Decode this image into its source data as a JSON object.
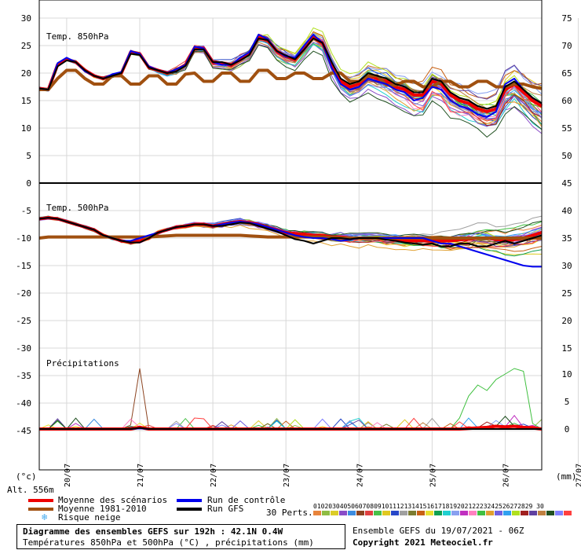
{
  "panels": {
    "t850_label": "Temp. 850hPa",
    "t500_label": "Temp. 500hPa",
    "precip_label": "Précipitations"
  },
  "axes": {
    "left_unit": "(°c)",
    "right_unit": "(mm)",
    "altitude": "Alt. 556m",
    "left_ticks": [
      "30",
      "25",
      "20",
      "15",
      "10",
      "5",
      "0",
      "-5",
      "-10",
      "-15",
      "-20",
      "-25",
      "-30",
      "-35",
      "-40",
      "-45"
    ],
    "right_ticks_top": [
      "75",
      "70",
      "65",
      "60",
      "55",
      "50",
      "45"
    ],
    "right_ticks_mid": [
      "40",
      "35",
      "30",
      "25",
      "20",
      "15"
    ],
    "right_ticks_precip": [
      "10",
      "5",
      "0"
    ],
    "dates": [
      "20/07",
      "21/07",
      "22/07",
      "23/07",
      "24/07",
      "25/07",
      "26/07",
      "27/07"
    ]
  },
  "legend": {
    "mean_scenarios": "Moyenne des scénarios",
    "mean_climato": "Moyenne 1981-2010",
    "snow_risk": "Risque neige",
    "control_run": "Run de contrôle",
    "gfs_run": "Run GFS",
    "perts_label": "30 Perts.",
    "perts_numbers": "01020304050607080910111213141516171819202122232425262728293​0",
    "colors": {
      "mean": "#ee0000",
      "climato": "#a05010",
      "control": "#0000ee",
      "gfs": "#000000",
      "snow": "#44aaee"
    }
  },
  "footer": {
    "title": "Diagramme des ensembles GEFS sur 192h : 42.1N 0.4W",
    "subtitle": "Températures 850hPa et 500hPa (°C) , précipitations (mm)",
    "run": "Ensemble GEFS du 19/07/2021 - 06Z",
    "copyright": "Copyright 2021 Meteociel.fr"
  },
  "pert_colors": [
    "#e8843c",
    "#8fbc44",
    "#dccc28",
    "#8a4cc8",
    "#3c8ce0",
    "#8c4420",
    "#e04040",
    "#48c048",
    "#e0c820",
    "#2848c8",
    "#a0a0a0",
    "#7c7c30",
    "#c86014",
    "#e8e030",
    "#10a050",
    "#20d0d0",
    "#88a0f0",
    "#c030c0",
    "#ff80c0",
    "#40c040",
    "#e0a030",
    "#7060e0",
    "#30a0f0",
    "#b0e020",
    "#a02020",
    "#6040a0",
    "#c08040",
    "#205020",
    "#8080ff",
    "#ff4040"
  ],
  "chart_data": {
    "type": "line",
    "x_start": "19/07 06Z",
    "x_step_hours": 6,
    "x_labels": [
      "20/07",
      "21/07",
      "22/07",
      "23/07",
      "24/07",
      "25/07",
      "26/07",
      "27/07"
    ],
    "panels": [
      {
        "name": "Temp. 850hPa",
        "unit": "°C",
        "ylim": [
          0,
          30
        ],
        "series": [
          {
            "name": "Moyenne des scénarios",
            "values": [
              17.2,
              17.0,
              21.5,
              22.5,
              22.0,
              20.5,
              19.5,
              19.0,
              19.5,
              20.0,
              23.8,
              23.5,
              21.0,
              20.5,
              20.0,
              20.5,
              21.5,
              24.5,
              24.5,
              22.0,
              21.8,
              21.5,
              22.5,
              23.5,
              26.5,
              26.0,
              24.0,
              23.0,
              22.5,
              24.5,
              26.5,
              25.5,
              21.5,
              18.5,
              17.5,
              18.0,
              19.5,
              19.0,
              18.5,
              17.5,
              17.0,
              16.0,
              16.0,
              18.5,
              18.0,
              16.0,
              15.0,
              14.5,
              13.5,
              13.0,
              13.5,
              17.0,
              18.0,
              16.5,
              15.0,
              14.0
            ]
          },
          {
            "name": "Moyenne 1981-2010",
            "values": [
              17.0,
              17.0,
              19.0,
              20.5,
              20.5,
              19.0,
              18.0,
              18.0,
              19.5,
              19.5,
              18.0,
              18.0,
              19.5,
              19.5,
              18.0,
              18.0,
              19.8,
              20.0,
              18.5,
              18.5,
              20.0,
              20.0,
              18.5,
              18.5,
              20.5,
              20.5,
              19.0,
              19.0,
              20.0,
              20.0,
              19.0,
              19.0,
              20.0,
              20.0,
              18.5,
              18.5,
              19.5,
              19.5,
              17.8,
              17.8,
              18.5,
              18.5,
              17.5,
              17.5,
              18.5,
              18.5,
              17.5,
              17.5,
              18.5,
              18.5,
              17.5,
              17.5,
              18.0,
              18.0,
              17.5,
              17.2
            ]
          },
          {
            "name": "Run de contrôle",
            "values": [
              17.2,
              17.0,
              21.8,
              22.8,
              22.0,
              20.3,
              19.5,
              19.0,
              19.8,
              20.2,
              24.0,
              23.5,
              21.2,
              20.5,
              20.0,
              20.7,
              21.5,
              24.8,
              24.5,
              22.0,
              21.5,
              21.5,
              22.8,
              23.8,
              27.0,
              26.2,
              24.0,
              23.0,
              22.8,
              25.0,
              27.0,
              25.5,
              21.0,
              18.0,
              17.0,
              17.5,
              19.0,
              18.5,
              18.0,
              17.0,
              16.5,
              15.0,
              15.5,
              17.5,
              17.0,
              15.0,
              14.0,
              13.5,
              12.5,
              12.0,
              13.0,
              18.0,
              19.0,
              17.0,
              15.5,
              14.5
            ]
          },
          {
            "name": "Run GFS",
            "values": [
              17.2,
              17.0,
              21.2,
              22.3,
              22.0,
              20.5,
              19.5,
              19.0,
              19.5,
              20.0,
              23.5,
              23.3,
              21.0,
              20.5,
              20.0,
              20.3,
              21.3,
              24.3,
              24.3,
              22.0,
              22.0,
              21.5,
              22.3,
              23.3,
              26.3,
              26.0,
              24.0,
              23.2,
              22.5,
              24.3,
              26.3,
              25.5,
              22.0,
              19.0,
              18.0,
              18.5,
              20.0,
              19.5,
              19.0,
              18.0,
              17.5,
              16.5,
              16.5,
              19.0,
              18.5,
              16.5,
              15.5,
              15.0,
              14.0,
              13.5,
              14.0,
              17.5,
              18.5,
              17.0,
              15.5,
              14.5
            ]
          }
        ]
      },
      {
        "name": "Temp. 500hPa",
        "unit": "°C",
        "ylim": [
          -20,
          0
        ],
        "series": [
          {
            "name": "Moyenne des scénarios",
            "values": [
              -6.5,
              -6.3,
              -6.5,
              -7.0,
              -7.5,
              -8.0,
              -8.5,
              -9.5,
              -10.0,
              -10.5,
              -10.8,
              -10.5,
              -10.0,
              -9.0,
              -8.5,
              -8.0,
              -7.8,
              -7.5,
              -7.5,
              -7.8,
              -7.5,
              -7.2,
              -7.0,
              -7.2,
              -7.5,
              -8.0,
              -8.5,
              -9.0,
              -9.2,
              -9.3,
              -9.5,
              -9.5,
              -9.8,
              -9.8,
              -10.0,
              -10.0,
              -10.0,
              -10.0,
              -10.2,
              -10.3,
              -10.5,
              -10.5,
              -10.5,
              -10.5,
              -10.5,
              -10.5,
              -10.3,
              -10.2,
              -10.0,
              -10.0,
              -10.2,
              -10.5,
              -10.2,
              -10.0,
              -9.5,
              -9.0
            ]
          },
          {
            "name": "Moyenne 1981-2010",
            "values": [
              -10.0,
              -9.8,
              -9.8,
              -9.8,
              -9.8,
              -9.8,
              -9.8,
              -9.8,
              -9.8,
              -9.8,
              -9.8,
              -9.8,
              -9.8,
              -9.7,
              -9.6,
              -9.5,
              -9.5,
              -9.5,
              -9.5,
              -9.5,
              -9.5,
              -9.5,
              -9.5,
              -9.6,
              -9.7,
              -9.8,
              -9.8,
              -9.8,
              -9.8,
              -9.8,
              -9.8,
              -9.8,
              -9.9,
              -10.0,
              -10.0,
              -10.0,
              -10.0,
              -10.0,
              -10.0,
              -10.0,
              -10.0,
              -10.0,
              -10.0,
              -10.0,
              -10.0,
              -10.0,
              -10.0,
              -10.0,
              -10.0,
              -10.0,
              -10.0,
              -10.0,
              -10.0,
              -10.0,
              -10.0,
              -10.0
            ]
          },
          {
            "name": "Run de contrôle",
            "values": [
              -6.5,
              -6.3,
              -6.5,
              -7.0,
              -7.5,
              -8.0,
              -8.5,
              -9.5,
              -10.0,
              -10.5,
              -10.5,
              -10.0,
              -9.5,
              -9.0,
              -8.5,
              -8.0,
              -7.8,
              -7.5,
              -7.5,
              -7.8,
              -7.5,
              -7.2,
              -7.0,
              -7.2,
              -7.5,
              -8.0,
              -8.5,
              -9.0,
              -9.5,
              -9.8,
              -10.0,
              -10.0,
              -10.2,
              -10.5,
              -10.3,
              -10.0,
              -10.0,
              -10.0,
              -10.0,
              -10.0,
              -10.0,
              -10.0,
              -10.0,
              -10.5,
              -11.0,
              -11.0,
              -11.5,
              -12.0,
              -12.5,
              -13.0,
              -13.5,
              -14.0,
              -14.5,
              -15.0,
              -15.2,
              -15.2
            ]
          },
          {
            "name": "Run GFS",
            "values": [
              -6.5,
              -6.3,
              -6.5,
              -7.0,
              -7.5,
              -8.0,
              -8.5,
              -9.5,
              -10.0,
              -10.5,
              -10.8,
              -10.8,
              -10.0,
              -9.0,
              -8.5,
              -8.0,
              -7.8,
              -7.5,
              -7.5,
              -7.8,
              -7.8,
              -7.5,
              -7.2,
              -7.3,
              -7.8,
              -8.3,
              -8.8,
              -9.5,
              -10.2,
              -10.5,
              -11.0,
              -10.5,
              -10.0,
              -10.0,
              -10.2,
              -10.0,
              -10.0,
              -10.0,
              -10.3,
              -10.5,
              -10.8,
              -11.0,
              -11.2,
              -11.0,
              -11.5,
              -11.5,
              -11.0,
              -11.0,
              -11.5,
              -11.5,
              -11.0,
              -10.5,
              -11.0,
              -10.5,
              -10.0,
              -9.5
            ]
          }
        ]
      },
      {
        "name": "Précipitations",
        "unit": "mm",
        "ylim": [
          0,
          10
        ],
        "series": [
          {
            "name": "Moyenne des scénarios",
            "values": [
              0,
              0,
              0,
              0,
              0,
              0,
              0,
              0,
              0,
              0,
              0,
              0.3,
              0,
              0,
              0,
              0,
              0,
              0,
              0,
              0,
              0,
              0,
              0,
              0,
              0,
              0,
              0,
              0,
              0,
              0,
              0,
              0,
              0,
              0,
              0,
              0,
              0,
              0,
              0,
              0,
              0,
              0,
              0,
              0,
              0,
              0,
              0,
              0.1,
              0.2,
              0.3,
              0.5,
              0.4,
              0.5,
              0.3,
              0.2,
              0
            ]
          },
          {
            "name": "Run de contrôle",
            "values": [
              0,
              0,
              0,
              0,
              0,
              0,
              0,
              0,
              0,
              0,
              0,
              0.1,
              0,
              0,
              0,
              0,
              0,
              0,
              0,
              0,
              0,
              0,
              0,
              0,
              0,
              0,
              0,
              0,
              0,
              0,
              0,
              0,
              0,
              0,
              0,
              0,
              0,
              0,
              0,
              0,
              0,
              0,
              0,
              0,
              0,
              0,
              0,
              0,
              0,
              0,
              0,
              0,
              0,
              0,
              0,
              0
            ]
          },
          {
            "name": "Run GFS",
            "values": [
              0,
              0,
              0,
              0,
              0,
              0,
              0,
              0,
              0,
              0,
              0,
              0.2,
              0,
              0,
              0,
              0,
              0,
              0,
              0,
              0,
              0,
              0,
              0,
              0,
              0,
              0,
              0,
              0,
              0,
              0,
              0,
              0,
              0,
              0,
              0,
              0,
              0,
              0,
              0,
              0,
              0,
              0,
              0,
              0,
              0,
              0,
              0,
              0,
              0,
              0,
              0,
              0,
              0,
              0,
              0,
              0
            ]
          }
        ]
      }
    ]
  }
}
